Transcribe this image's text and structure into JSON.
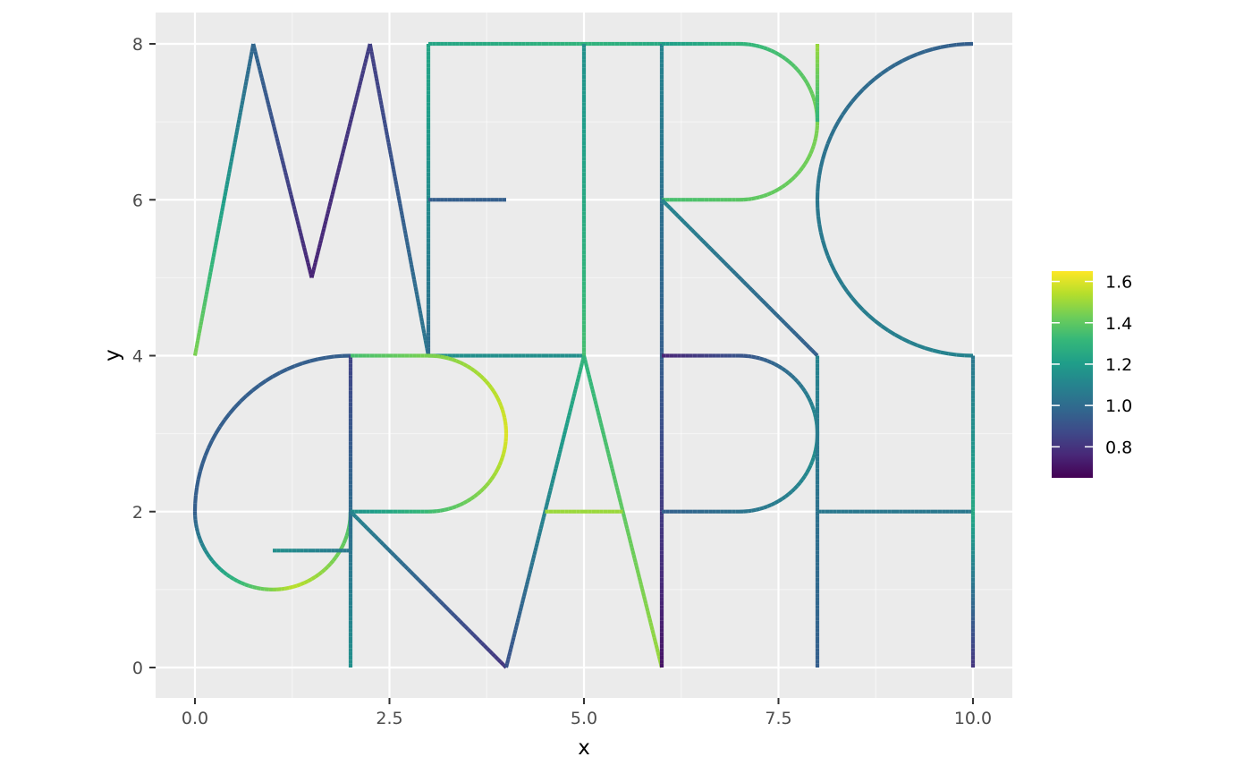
{
  "chart_data": {
    "type": "line",
    "title": "",
    "xlabel": "x",
    "ylabel": "y",
    "xlim": [
      -0.2,
      10.5
    ],
    "ylim": [
      -0.2,
      8.5
    ],
    "x_ticks": [
      0,
      2.5,
      5,
      7.5,
      10
    ],
    "x_tick_labels": [
      "0.0",
      "2.5",
      "5.0",
      "7.5",
      "10.0"
    ],
    "y_ticks": [
      0,
      2,
      4,
      6,
      8
    ],
    "y_tick_labels": [
      "0",
      "2",
      "4",
      "6",
      "8"
    ],
    "grid": true,
    "background": "#EBEBEB",
    "colorbar": {
      "title": "",
      "min": 0.65,
      "max": 1.65,
      "ticks": [
        0.8,
        1.0,
        1.2,
        1.4,
        1.6
      ],
      "tick_labels": [
        "0.8",
        "1.0",
        "1.2",
        "1.4",
        "1.6"
      ],
      "palette": "viridis",
      "placement": "right"
    },
    "series": [
      {
        "name": "",
        "kind": "polyline",
        "points": [
          [
            0,
            4
          ],
          [
            0.75,
            8
          ],
          [
            1.5,
            5
          ],
          [
            2.25,
            8
          ],
          [
            3,
            4
          ]
        ],
        "values": [
          1.45,
          1.02,
          0.75,
          0.85,
          1.05
        ]
      },
      {
        "name": "",
        "kind": "polyline",
        "points": [
          [
            3,
            4
          ],
          [
            3,
            8
          ],
          [
            5,
            8
          ]
        ],
        "values": [
          1.0,
          1.2,
          1.3
        ]
      },
      {
        "name": "",
        "kind": "polyline",
        "points": [
          [
            3,
            6
          ],
          [
            4,
            6
          ]
        ],
        "values": [
          0.95,
          0.95
        ]
      },
      {
        "name": "",
        "kind": "polyline",
        "points": [
          [
            3,
            4
          ],
          [
            5,
            4
          ]
        ],
        "values": [
          1.15,
          1.15
        ]
      },
      {
        "name": "",
        "kind": "polyline",
        "points": [
          [
            5,
            8
          ],
          [
            6,
            8
          ]
        ],
        "values": [
          1.3,
          1.25
        ]
      },
      {
        "name": "",
        "kind": "polyline",
        "points": [
          [
            5,
            8
          ],
          [
            5,
            4
          ]
        ],
        "values": [
          1.15,
          1.35
        ]
      },
      {
        "name": "",
        "kind": "polyline",
        "points": [
          [
            6,
            8
          ],
          [
            6,
            4
          ]
        ],
        "values": [
          1.1,
          0.95
        ]
      },
      {
        "name": "",
        "kind": "arc",
        "center": [
          7,
          7
        ],
        "r": 1,
        "theta": [
          90,
          -90
        ],
        "line_before": [
          [
            6,
            8
          ],
          [
            7,
            8
          ]
        ],
        "line_after": [
          [
            7,
            6
          ],
          [
            6,
            6
          ]
        ],
        "values": [
          1.2,
          1.45,
          1.35
        ]
      },
      {
        "name": "",
        "kind": "polyline",
        "points": [
          [
            6,
            6
          ],
          [
            8,
            4
          ]
        ],
        "values": [
          1.1,
          0.95
        ]
      },
      {
        "name": "",
        "kind": "polyline",
        "points": [
          [
            8,
            8
          ],
          [
            8,
            7
          ]
        ],
        "values": [
          1.5,
          1.3
        ]
      },
      {
        "name": "",
        "kind": "arc",
        "center": [
          10,
          6
        ],
        "r": 2,
        "theta": [
          90,
          270
        ],
        "line_before": [],
        "line_after": [],
        "values": [
          0.95,
          1.05,
          1.1
        ]
      },
      {
        "name": "",
        "kind": "arc",
        "center": [
          1,
          2
        ],
        "r": 1,
        "theta": [
          180,
          360
        ],
        "line_before": [],
        "line_after": [
          [
            2,
            1.5
          ]
        ],
        "values": [
          0.95,
          1.55,
          1.25
        ]
      },
      {
        "name": "",
        "kind": "arc",
        "center": [
          2,
          2
        ],
        "r": 2,
        "theta": [
          180,
          90
        ],
        "line_before": [],
        "line_after": [],
        "values": [
          0.95,
          0.95,
          0.95
        ]
      },
      {
        "name": "",
        "kind": "polyline",
        "points": [
          [
            1,
            1.5
          ],
          [
            2,
            1.5
          ]
        ],
        "values": [
          1.15,
          1.05
        ]
      },
      {
        "name": "",
        "kind": "polyline",
        "points": [
          [
            2,
            0
          ],
          [
            2,
            4
          ]
        ],
        "values": [
          1.15,
          0.85
        ]
      },
      {
        "name": "",
        "kind": "arc",
        "center": [
          3,
          3
        ],
        "r": 1,
        "theta": [
          90,
          -90
        ],
        "line_before": [
          [
            2,
            4
          ],
          [
            3,
            4
          ]
        ],
        "line_after": [
          [
            3,
            2
          ],
          [
            2,
            2
          ]
        ],
        "values": [
          1.35,
          1.6,
          1.15
        ]
      },
      {
        "name": "",
        "kind": "polyline",
        "points": [
          [
            2,
            2
          ],
          [
            4,
            0
          ]
        ],
        "values": [
          1.1,
          0.8
        ]
      },
      {
        "name": "",
        "kind": "polyline",
        "points": [
          [
            4,
            0
          ],
          [
            5,
            4
          ],
          [
            6,
            0
          ]
        ],
        "values": [
          0.9,
          1.3,
          1.5
        ]
      },
      {
        "name": "",
        "kind": "polyline",
        "points": [
          [
            4.5,
            2
          ],
          [
            5.5,
            2
          ]
        ],
        "values": [
          1.5,
          1.5
        ]
      },
      {
        "name": "",
        "kind": "polyline",
        "points": [
          [
            6,
            4
          ],
          [
            6,
            0
          ]
        ],
        "values": [
          0.95,
          0.7
        ]
      },
      {
        "name": "",
        "kind": "arc",
        "center": [
          7,
          3
        ],
        "r": 1,
        "theta": [
          90,
          -90
        ],
        "line_before": [
          [
            6,
            4
          ],
          [
            7,
            4
          ]
        ],
        "line_after": [
          [
            7,
            2
          ],
          [
            6,
            2
          ]
        ],
        "values": [
          0.75,
          1.15,
          0.95
        ]
      },
      {
        "name": "",
        "kind": "polyline",
        "points": [
          [
            8,
            4
          ],
          [
            8,
            0
          ]
        ],
        "values": [
          1.1,
          0.95
        ]
      },
      {
        "name": "",
        "kind": "polyline",
        "points": [
          [
            8,
            2
          ],
          [
            10,
            2
          ]
        ],
        "values": [
          1.05,
          1.05
        ]
      },
      {
        "name": "",
        "kind": "polyline",
        "points": [
          [
            10,
            4
          ],
          [
            10,
            2
          ],
          [
            10,
            0
          ]
        ],
        "values": [
          1.05,
          1.25,
          0.8
        ]
      }
    ]
  }
}
